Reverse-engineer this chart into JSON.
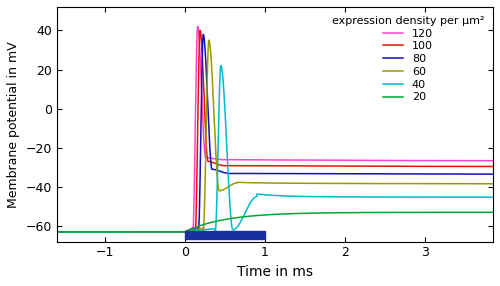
{
  "xlabel": "Time in ms",
  "ylabel": "Membrane potential in mV",
  "xlim": [
    -1.6,
    3.85
  ],
  "ylim": [
    -68,
    52
  ],
  "xticks": [
    -1,
    0,
    1,
    2,
    3
  ],
  "yticks": [
    -60,
    -40,
    -20,
    0,
    20,
    40
  ],
  "legend_title": "expression density per μm²",
  "legend_labels": [
    "120",
    "100",
    "80",
    "60",
    "40",
    "20"
  ],
  "colors": {
    "120": "#FF44CC",
    "100": "#EE1100",
    "80": "#1111BB",
    "60": "#999900",
    "40": "#00BBCC",
    "20": "#00AA33"
  },
  "blue_bar_xstart": 0.0,
  "blue_bar_xend": 1.0,
  "blue_bar_color": "#1A2FA0",
  "resting": -63.0,
  "spike_params": {
    "120": {
      "t_spike": 0.1,
      "peak": 42,
      "ahp": -25,
      "plateau": -26,
      "t_rise": 0.06,
      "t_fall": 0.1,
      "t_ahp_dur": 0.18,
      "t_plateau_tau": 1.4
    },
    "100": {
      "t_spike": 0.13,
      "peak": 40,
      "ahp": -27,
      "plateau": -29,
      "t_rise": 0.06,
      "t_fall": 0.1,
      "t_ahp_dur": 0.18,
      "t_plateau_tau": 1.4
    },
    "80": {
      "t_spike": 0.17,
      "peak": 38,
      "ahp": -31,
      "plateau": -33,
      "t_rise": 0.06,
      "t_fall": 0.11,
      "t_ahp_dur": 0.2,
      "t_plateau_tau": 1.5
    },
    "60": {
      "t_spike": 0.23,
      "peak": 35,
      "ahp": -42,
      "plateau": -38,
      "t_rise": 0.07,
      "t_fall": 0.13,
      "t_ahp_dur": 0.22,
      "t_plateau_tau": 1.5
    },
    "40": {
      "t_spike": 0.38,
      "peak": 22,
      "ahp": -62,
      "plateau": -45,
      "t_rise": 0.07,
      "t_fall": 0.15,
      "t_ahp_dur": 0.3,
      "t_plateau_tau": 1.8
    }
  },
  "no_spike_params": {
    "20": {
      "plateau": -53,
      "t_rise_tau": 0.5,
      "t_start": 0.0
    }
  }
}
